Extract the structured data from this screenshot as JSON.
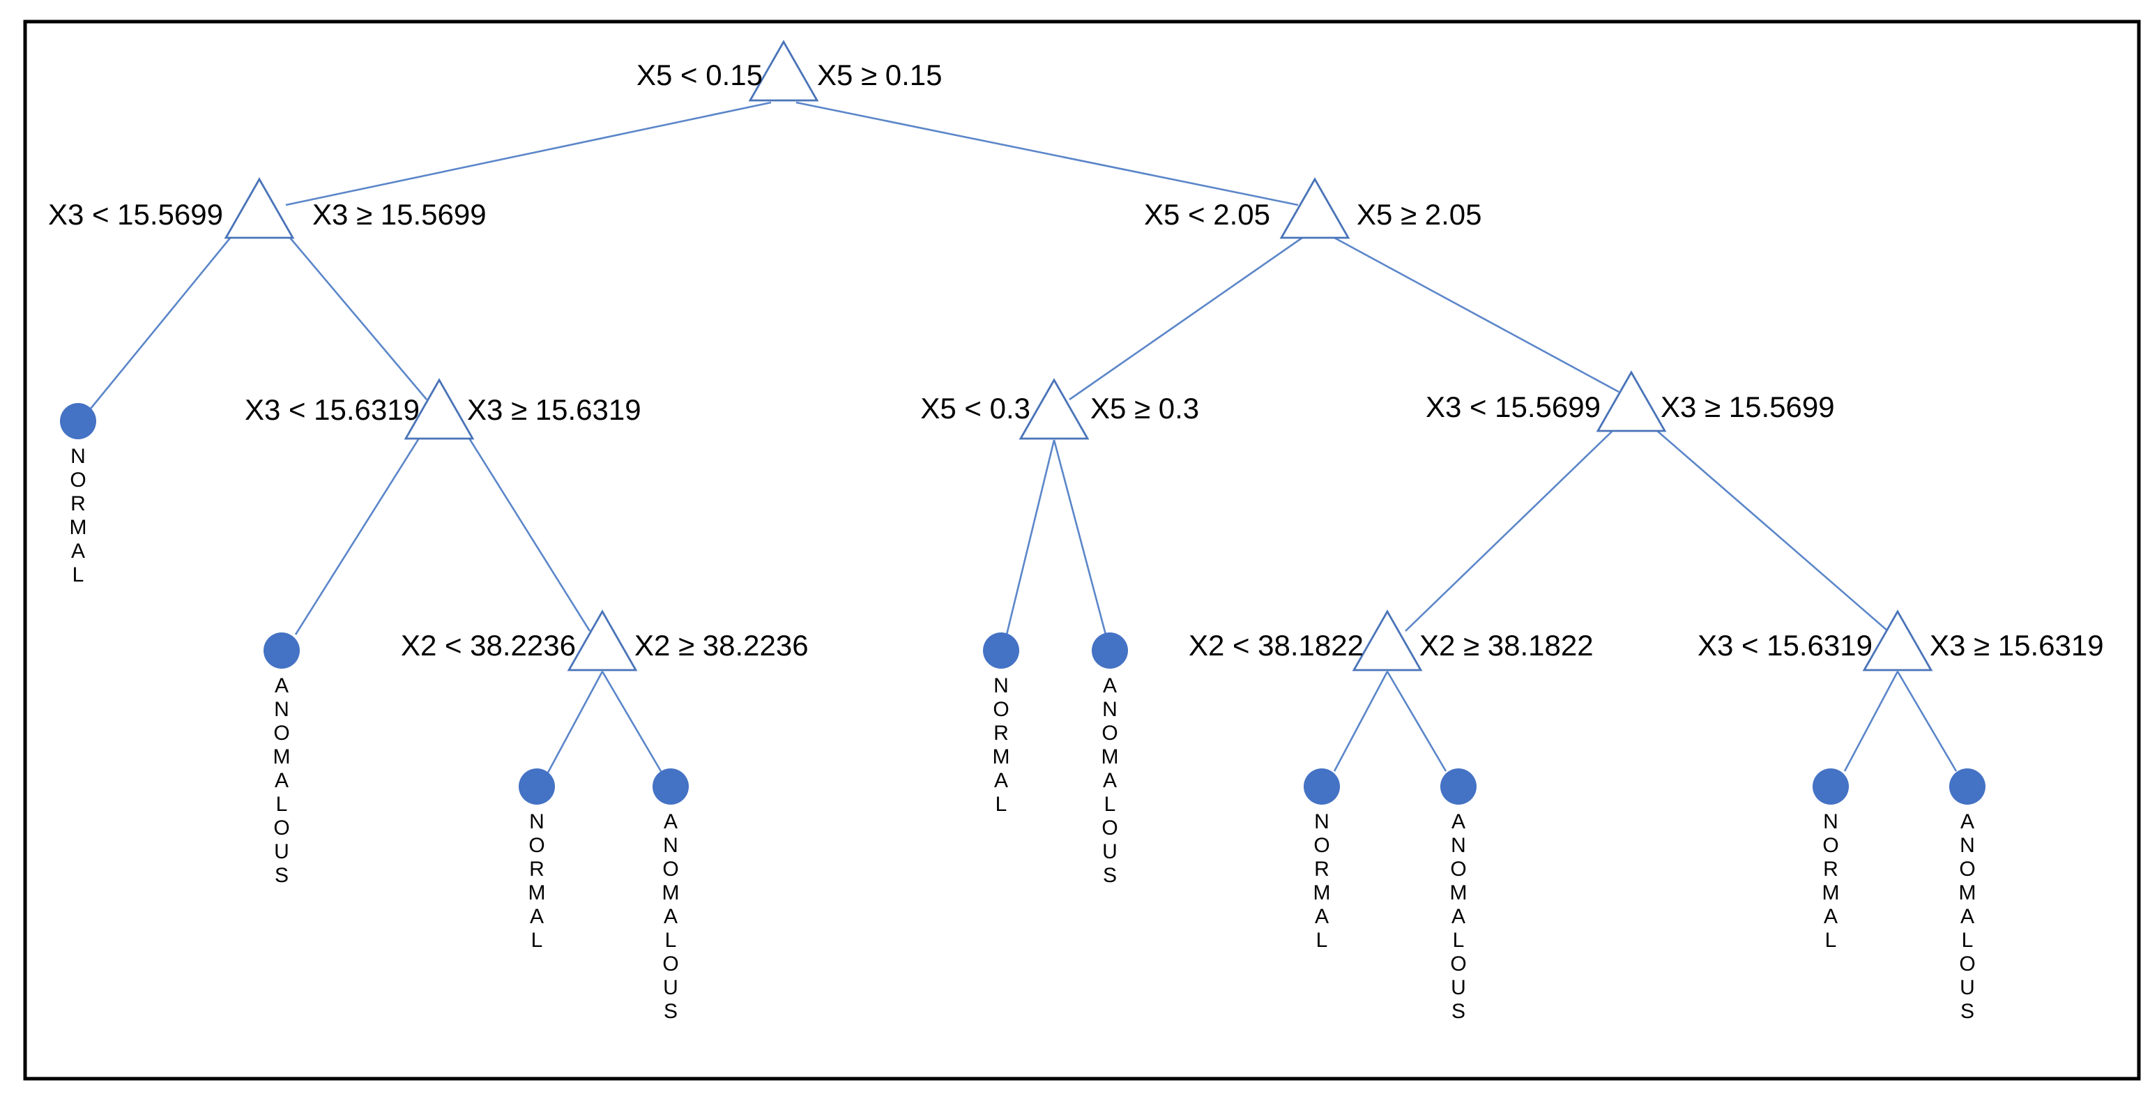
{
  "tree": {
    "edge_color": "#5b86c9",
    "leaf_color": "#4472c4",
    "nodes": [
      {
        "id": "root",
        "left_condition": "X5 < 0.15",
        "right_condition": "X5 ≥ 0.15"
      },
      {
        "id": "n1",
        "parent": "root",
        "left_condition": "X3 < 15.5699",
        "right_condition": "X3 ≥ 15.5699"
      },
      {
        "id": "n2",
        "parent": "root",
        "left_condition": "X5 < 2.05",
        "right_condition": "X5 ≥ 2.05"
      },
      {
        "id": "n3",
        "parent": "n1",
        "left_condition": "X3 < 15.6319",
        "right_condition": "X3 ≥ 15.6319"
      },
      {
        "id": "n4",
        "parent": "n3",
        "left_condition": "X2 < 38.2236",
        "right_condition": "X2 ≥ 38.2236"
      },
      {
        "id": "n5",
        "parent": "n2",
        "left_condition": "X5 < 0.3",
        "right_condition": "X5 ≥ 0.3"
      },
      {
        "id": "n6",
        "parent": "n2",
        "left_condition": "X3 < 15.5699",
        "right_condition": "X3 ≥ 15.5699"
      },
      {
        "id": "n7",
        "parent": "n6",
        "left_condition": "X2 < 38.1822",
        "right_condition": "X2 ≥ 38.1822"
      },
      {
        "id": "n8",
        "parent": "n6",
        "left_condition": "X3 < 15.6319",
        "right_condition": "X3 ≥ 15.6319"
      }
    ],
    "leaves": [
      {
        "id": "L1",
        "parent": "n1",
        "label": "NORMAL"
      },
      {
        "id": "L2",
        "parent": "n3",
        "label": "ANOMALOUS"
      },
      {
        "id": "L3",
        "parent": "n4",
        "label": "NORMAL"
      },
      {
        "id": "L4",
        "parent": "n4",
        "label": "ANOMALOUS"
      },
      {
        "id": "L5",
        "parent": "n5",
        "label": "NORMAL"
      },
      {
        "id": "L6",
        "parent": "n5",
        "label": "ANOMALOUS"
      },
      {
        "id": "L7",
        "parent": "n7",
        "label": "NORMAL"
      },
      {
        "id": "L8",
        "parent": "n7",
        "label": "ANOMALOUS"
      },
      {
        "id": "L9",
        "parent": "n8",
        "label": "NORMAL"
      },
      {
        "id": "L10",
        "parent": "n8",
        "label": "ANOMALOUS"
      }
    ]
  }
}
